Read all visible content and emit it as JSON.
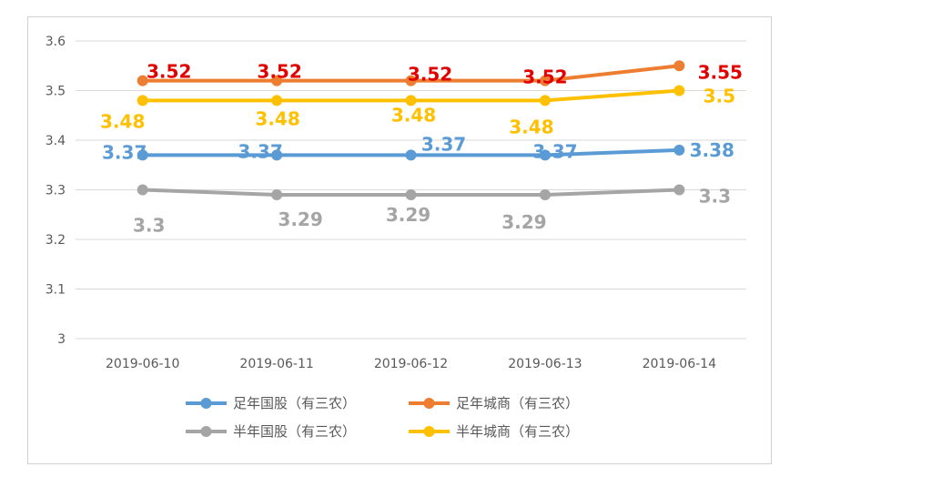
{
  "chart_data": {
    "type": "line",
    "title": "",
    "xlabel": "",
    "ylabel": "",
    "ylim": [
      3,
      3.6
    ],
    "yticks": [
      "3",
      "3.1",
      "3.2",
      "3.3",
      "3.4",
      "3.5",
      "3.6"
    ],
    "categories": [
      "2019-06-10",
      "2019-06-11",
      "2019-06-12",
      "2019-06-13",
      "2019-06-14"
    ],
    "grid": true,
    "legend_position": "bottom",
    "series": [
      {
        "name": "足年国股（有三农）",
        "color": "#5b9bd5",
        "label_color": "#5b9bd5",
        "values": [
          3.37,
          3.37,
          3.37,
          3.37,
          3.38
        ],
        "labels": [
          "3.37",
          "3.37",
          "3.37",
          "3.37",
          "3.38"
        ]
      },
      {
        "name": "足年城商（有三农）",
        "color": "#ed7d31",
        "label_color": "#e00000",
        "values": [
          3.52,
          3.52,
          3.52,
          3.52,
          3.55
        ],
        "labels": [
          "3.52",
          "3.52",
          "3.52",
          "3.52",
          "3.55"
        ]
      },
      {
        "name": "半年国股（有三农）",
        "color": "#a5a5a5",
        "label_color": "#a5a5a5",
        "values": [
          3.3,
          3.29,
          3.29,
          3.29,
          3.3
        ],
        "labels": [
          "3.3",
          "3.29",
          "3.29",
          "3.29",
          "3.3"
        ]
      },
      {
        "name": "半年城商（有三农）",
        "color": "#ffc000",
        "label_color": "#ffc000",
        "values": [
          3.48,
          3.48,
          3.48,
          3.48,
          3.5
        ],
        "labels": [
          "3.48",
          "3.48",
          "3.48",
          "3.48",
          "3.5"
        ]
      }
    ]
  }
}
